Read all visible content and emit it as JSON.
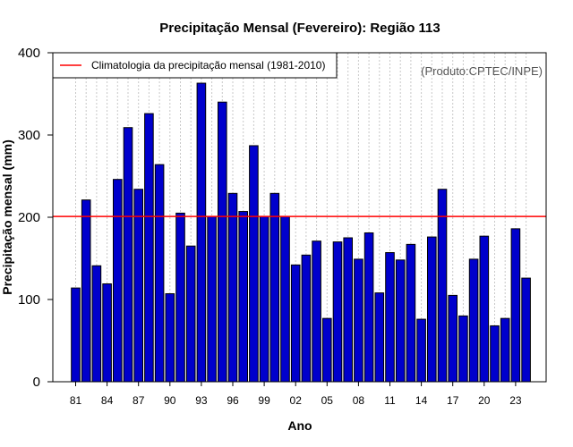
{
  "chart_data": {
    "type": "bar",
    "title": "Precipitação Mensal (Fevereiro): Região 113",
    "xlabel": "Ano",
    "ylabel": "Precipitação mensal (mm)",
    "ylim": [
      0,
      400
    ],
    "yticks": [
      0,
      100,
      200,
      300,
      400
    ],
    "grid": true,
    "bar_color": "#0000cc",
    "categories": [
      "81",
      "82",
      "83",
      "84",
      "85",
      "86",
      "87",
      "88",
      "89",
      "90",
      "91",
      "92",
      "93",
      "94",
      "95",
      "96",
      "97",
      "98",
      "99",
      "00",
      "01",
      "02",
      "03",
      "04",
      "05",
      "06",
      "07",
      "08",
      "09",
      "10",
      "11",
      "12",
      "13",
      "14",
      "15",
      "16",
      "17",
      "18",
      "19",
      "20",
      "21",
      "22",
      "23",
      "24"
    ],
    "tick_labels": [
      "81",
      "84",
      "87",
      "90",
      "93",
      "96",
      "99",
      "02",
      "05",
      "08",
      "11",
      "14",
      "17",
      "20",
      "23"
    ],
    "values": [
      114,
      221,
      141,
      119,
      246,
      309,
      234,
      326,
      264,
      107,
      205,
      165,
      363,
      201,
      340,
      229,
      207,
      287,
      201,
      229,
      201,
      142,
      154,
      171,
      77,
      170,
      175,
      149,
      181,
      108,
      157,
      148,
      167,
      76,
      176,
      234,
      105,
      80,
      149,
      177,
      68,
      77,
      186,
      126
    ],
    "reference_line": {
      "value": 201,
      "color": "#ff0000",
      "label": "Climatologia da precipitação mensal (1981-2010)"
    },
    "legend_position": "top-left",
    "credit": "(Produto:CPTEC/INPE)"
  }
}
